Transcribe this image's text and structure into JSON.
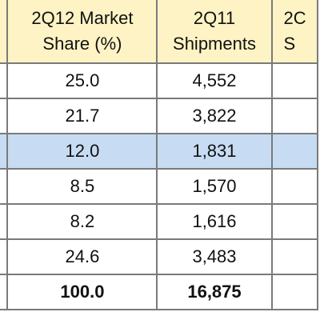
{
  "table": {
    "header": [
      [
        "2Q12 Market",
        "Share (%)"
      ],
      [
        "2Q11",
        "Shipments"
      ],
      [
        "2C",
        "S"
      ]
    ],
    "rows": [
      [
        "25.0",
        "4,552"
      ],
      [
        "21.7",
        "3,822"
      ],
      [
        "12.0",
        "1,831"
      ],
      [
        "8.5",
        "1,570"
      ],
      [
        "8.2",
        "1,616"
      ],
      [
        "24.6",
        "3,483"
      ],
      [
        "100.0",
        "16,875"
      ]
    ]
  }
}
